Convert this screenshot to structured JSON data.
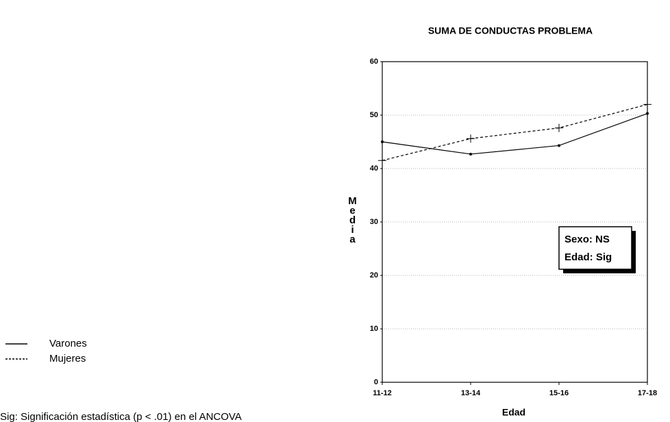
{
  "chart_data": {
    "type": "line",
    "title": "SUMA DE CONDUCTAS PROBLEMA",
    "xlabel": "Edad",
    "ylabel": "Media",
    "categories": [
      "11-12",
      "13-14",
      "15-16",
      "17-18"
    ],
    "series": [
      {
        "name": "Varones",
        "color": "#000000",
        "style": "solid",
        "marker": "dot",
        "values": [
          45,
          42.7,
          44.3,
          50.3
        ]
      },
      {
        "name": "Mujeres",
        "color": "#000000",
        "style": "dashed",
        "marker": "plus",
        "values": [
          41.5,
          45.6,
          47.6,
          52
        ]
      }
    ],
    "ylim": [
      0,
      60
    ],
    "yticks": [
      0,
      10,
      20,
      30,
      40,
      50,
      60
    ],
    "grid": true,
    "annotations": [
      "Sexo: NS",
      "Edad: Sig"
    ],
    "footnote": "Sig: Significación estadística  (p < .01) en el ANCOVA"
  }
}
